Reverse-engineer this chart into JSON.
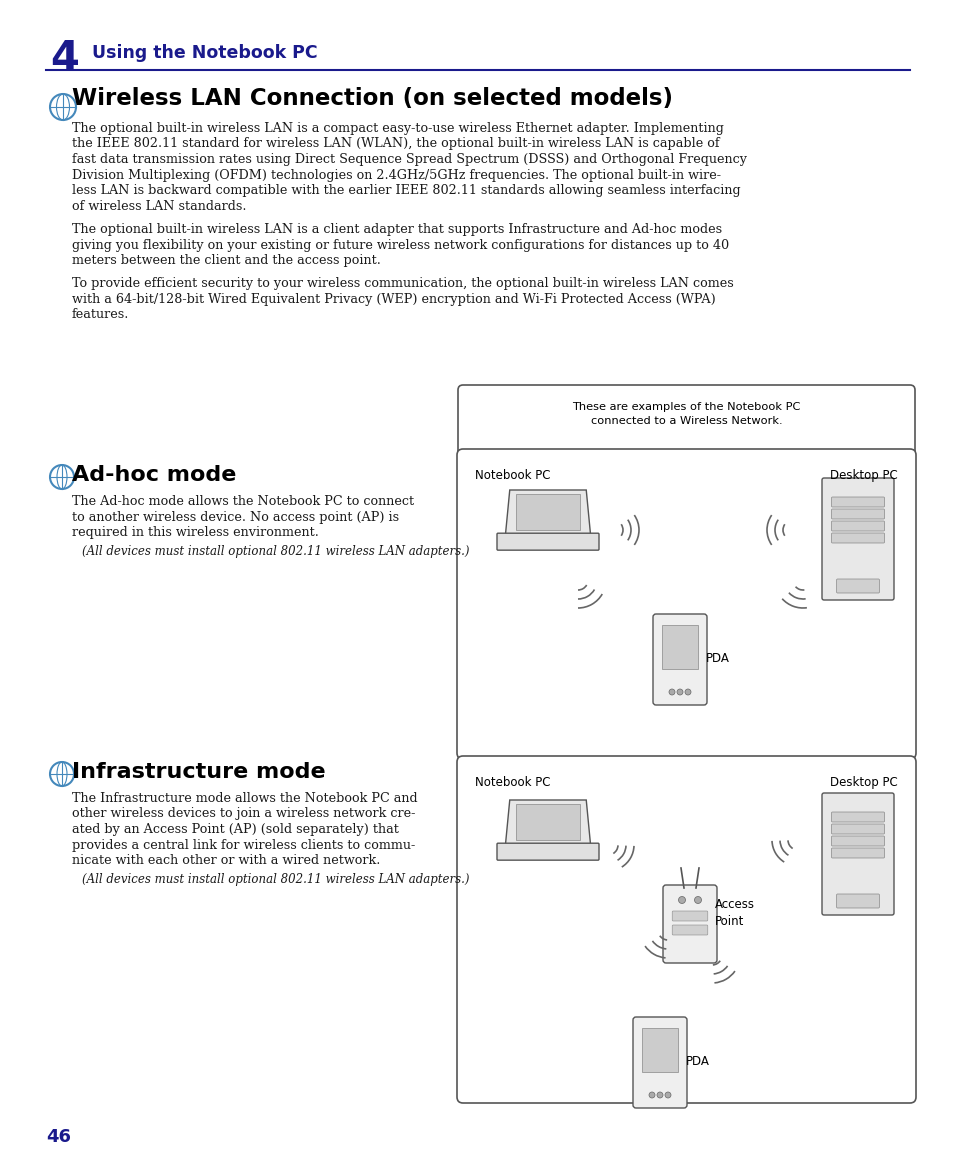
{
  "bg_color": "#ffffff",
  "page_width": 9.54,
  "page_height": 11.55,
  "header_number": "4",
  "header_text": "Using the Notebook PC",
  "header_color": "#1a1a8c",
  "header_line_color": "#1a1a8c",
  "section_title": "Wireless LAN Connection (on selected models)",
  "para1_lines": [
    "The optional built-in wireless LAN is a compact easy-to-use wireless Ethernet adapter. Implementing",
    "the IEEE 802.11 standard for wireless LAN (WLAN), the optional built-in wireless LAN is capable of",
    "fast data transmission rates using Direct Sequence Spread Spectrum (DSSS) and Orthogonal Frequency",
    "Division Multiplexing (OFDM) technologies on 2.4GHz/5GHz frequencies. The optional built-in wire-",
    "less LAN is backward compatible with the earlier IEEE 802.11 standards allowing seamless interfacing",
    "of wireless LAN standards."
  ],
  "para2_lines": [
    "The optional built-in wireless LAN is a client adapter that supports Infrastructure and Ad-hoc modes",
    "giving you flexibility on your existing or future wireless network configurations for distances up to 40",
    "meters between the client and the access point."
  ],
  "para3_lines": [
    "To provide efficient security to your wireless communication, the optional built-in wireless LAN comes",
    "with a 64-bit/128-bit Wired Equivalent Privacy (WEP) encryption and Wi-Fi Protected Access (WPA)",
    "features."
  ],
  "callout_text": "These are examples of the Notebook PC\nconnected to a Wireless Network.",
  "adhoc_title": "Ad-hoc mode",
  "adhoc_para_lines": [
    "The Ad-hoc mode allows the Notebook PC to connect",
    "to another wireless device. No access point (AP) is",
    "required in this wireless environment."
  ],
  "adhoc_note": "(All devices must install optional 802.11 wireless LAN adapters.)",
  "infra_title": "Infrastructure mode",
  "infra_para_lines": [
    "The Infrastructure mode allows the Notebook PC and",
    "other wireless devices to join a wireless network cre-",
    "ated by an Access Point (AP) (sold separately) that",
    "provides a central link for wireless clients to commu-",
    "nicate with each other or with a wired network."
  ],
  "infra_note": "(All devices must install optional 802.11 wireless LAN adapters.)",
  "page_number": "46",
  "page_number_color": "#1a1a8c",
  "body_font_size": 9.2,
  "body_color": "#1a1a1a",
  "note_font_size": 8.5,
  "title_color": "#000000",
  "diagram_border_color": "#555555",
  "notebook_pc_label": "Notebook PC",
  "desktop_pc_label": "Desktop PC",
  "pda_label": "PDA",
  "access_point_label": "Access\nPoint"
}
